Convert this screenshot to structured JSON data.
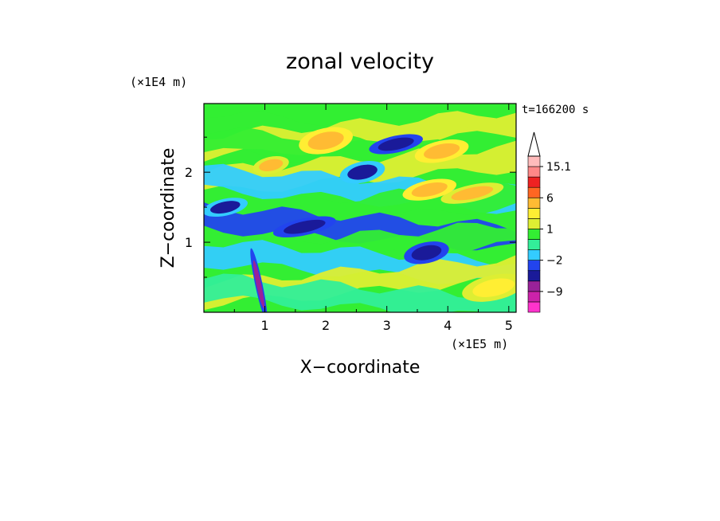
{
  "chart_data": {
    "type": "heatmap",
    "title": "zonal velocity",
    "xlabel": "X−coordinate",
    "ylabel": "Z−coordinate",
    "x_unit": "(×1E5 m)",
    "y_unit": "(×1E4 m)",
    "time_label": "t=166200 s",
    "xlim": [
      0,
      5.12
    ],
    "ylim": [
      0,
      2.98
    ],
    "x_ticks": [
      1,
      2,
      3,
      4,
      5
    ],
    "y_ticks": [
      1,
      2
    ],
    "colorbar": {
      "levels": [
        -15,
        -12,
        -9,
        -6,
        -3,
        -2,
        -1,
        0,
        1,
        2,
        3,
        6,
        9,
        12,
        15.1
      ],
      "labels": [
        {
          "value": 15.1,
          "text": "15.1"
        },
        {
          "value": 6,
          "text": "6"
        },
        {
          "value": 1,
          "text": "1"
        },
        {
          "value": -2,
          "text": "−2"
        },
        {
          "value": -9,
          "text": "−9"
        }
      ],
      "colors": [
        "#ff33cc",
        "#cc22aa",
        "#992299",
        "#1a1a99",
        "#2244ee",
        "#33ccff",
        "#33ee99",
        "#33ee33",
        "#ddee33",
        "#ffee33",
        "#ffbb33",
        "#ff6622",
        "#ee2222",
        "#ff8888",
        "#ffbbbb"
      ],
      "extend_max": true
    },
    "field_bands": [
      {
        "z": 2.85,
        "value": 0.5
      },
      {
        "z": 2.55,
        "value": 1.5
      },
      {
        "z": 2.3,
        "value": 0.3
      },
      {
        "z": 2.05,
        "value": 1.2
      },
      {
        "z": 1.75,
        "value": -1.5
      },
      {
        "z": 1.5,
        "value": 0.8
      },
      {
        "z": 1.2,
        "value": -2.5
      },
      {
        "z": 0.95,
        "value": 0.6
      },
      {
        "z": 0.7,
        "value": -1.8
      },
      {
        "z": 0.45,
        "value": 1.1
      },
      {
        "z": 0.2,
        "value": -0.4
      }
    ],
    "features": [
      {
        "x": 1.65,
        "z": 1.22,
        "value": -5.5,
        "rx": 0.35,
        "rz": 0.08
      },
      {
        "x": 3.65,
        "z": 0.85,
        "value": -5,
        "rx": 0.25,
        "rz": 0.1
      },
      {
        "x": 3.15,
        "z": 2.4,
        "value": -4.5,
        "rx": 0.3,
        "rz": 0.08
      },
      {
        "x": 0.35,
        "z": 1.5,
        "value": -4.2,
        "rx": 0.25,
        "rz": 0.08
      },
      {
        "x": 2.0,
        "z": 2.45,
        "value": 4.5,
        "rx": 0.3,
        "rz": 0.12
      },
      {
        "x": 3.9,
        "z": 2.3,
        "value": 3.8,
        "rx": 0.3,
        "rz": 0.1
      },
      {
        "x": 4.4,
        "z": 1.7,
        "value": 3.4,
        "rx": 0.35,
        "rz": 0.08
      },
      {
        "x": 3.7,
        "z": 1.75,
        "value": 4.2,
        "rx": 0.3,
        "rz": 0.09
      },
      {
        "x": 1.1,
        "z": 2.1,
        "value": 3.2,
        "rx": 0.2,
        "rz": 0.08
      },
      {
        "x": 2.6,
        "z": 2.0,
        "value": -3.2,
        "rx": 0.25,
        "rz": 0.1
      },
      {
        "x": 0.9,
        "z": 0.4,
        "value": -6,
        "rx": 0.04,
        "rz": 0.35
      },
      {
        "x": 4.75,
        "z": 0.35,
        "value": 2.6,
        "rx": 0.35,
        "rz": 0.12
      }
    ]
  }
}
